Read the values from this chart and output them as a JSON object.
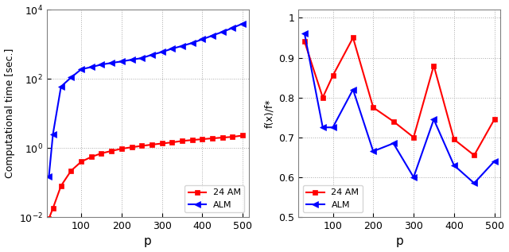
{
  "left": {
    "p_values": [
      20,
      30,
      50,
      75,
      100,
      125,
      150,
      175,
      200,
      225,
      250,
      275,
      300,
      325,
      350,
      375,
      400,
      425,
      450,
      475,
      500
    ],
    "am_time": [
      0.009,
      0.018,
      0.08,
      0.22,
      0.4,
      0.55,
      0.7,
      0.82,
      0.95,
      1.05,
      1.15,
      1.25,
      1.35,
      1.45,
      1.6,
      1.7,
      1.8,
      1.9,
      2.0,
      2.1,
      2.3
    ],
    "alm_time": [
      0.15,
      2.5,
      60,
      110,
      190,
      220,
      260,
      290,
      320,
      360,
      400,
      500,
      600,
      750,
      900,
      1100,
      1400,
      1800,
      2300,
      3000,
      4000
    ],
    "xlabel": "p",
    "ylabel": "Computational time [sec.]",
    "am_label": "24 AM",
    "alm_label": "ALM",
    "am_color": "#ff0000",
    "alm_color": "#0000ff",
    "xlim": [
      15,
      515
    ],
    "ylim": [
      0.01,
      10000
    ],
    "xticks": [
      100,
      200,
      300,
      400,
      500
    ]
  },
  "right": {
    "p_values": [
      30,
      75,
      100,
      150,
      200,
      250,
      300,
      350,
      400,
      450,
      500
    ],
    "am_ratio": [
      0.94,
      0.8,
      0.855,
      0.95,
      0.775,
      0.74,
      0.7,
      0.88,
      0.695,
      0.655,
      0.745
    ],
    "alm_ratio": [
      0.96,
      0.725,
      0.725,
      0.82,
      0.665,
      0.685,
      0.6,
      0.745,
      0.63,
      0.585,
      0.64
    ],
    "xlabel": "p",
    "ylabel": "f(x)/f*",
    "am_label": "24 AM",
    "alm_label": "ALM",
    "am_color": "#ff0000",
    "alm_color": "#0000ff",
    "xlim": [
      15,
      515
    ],
    "ylim": [
      0.5,
      1.02
    ],
    "xticks": [
      100,
      200,
      300,
      400,
      500
    ],
    "yticks": [
      0.5,
      0.6,
      0.7,
      0.8,
      0.9,
      1.0
    ]
  }
}
